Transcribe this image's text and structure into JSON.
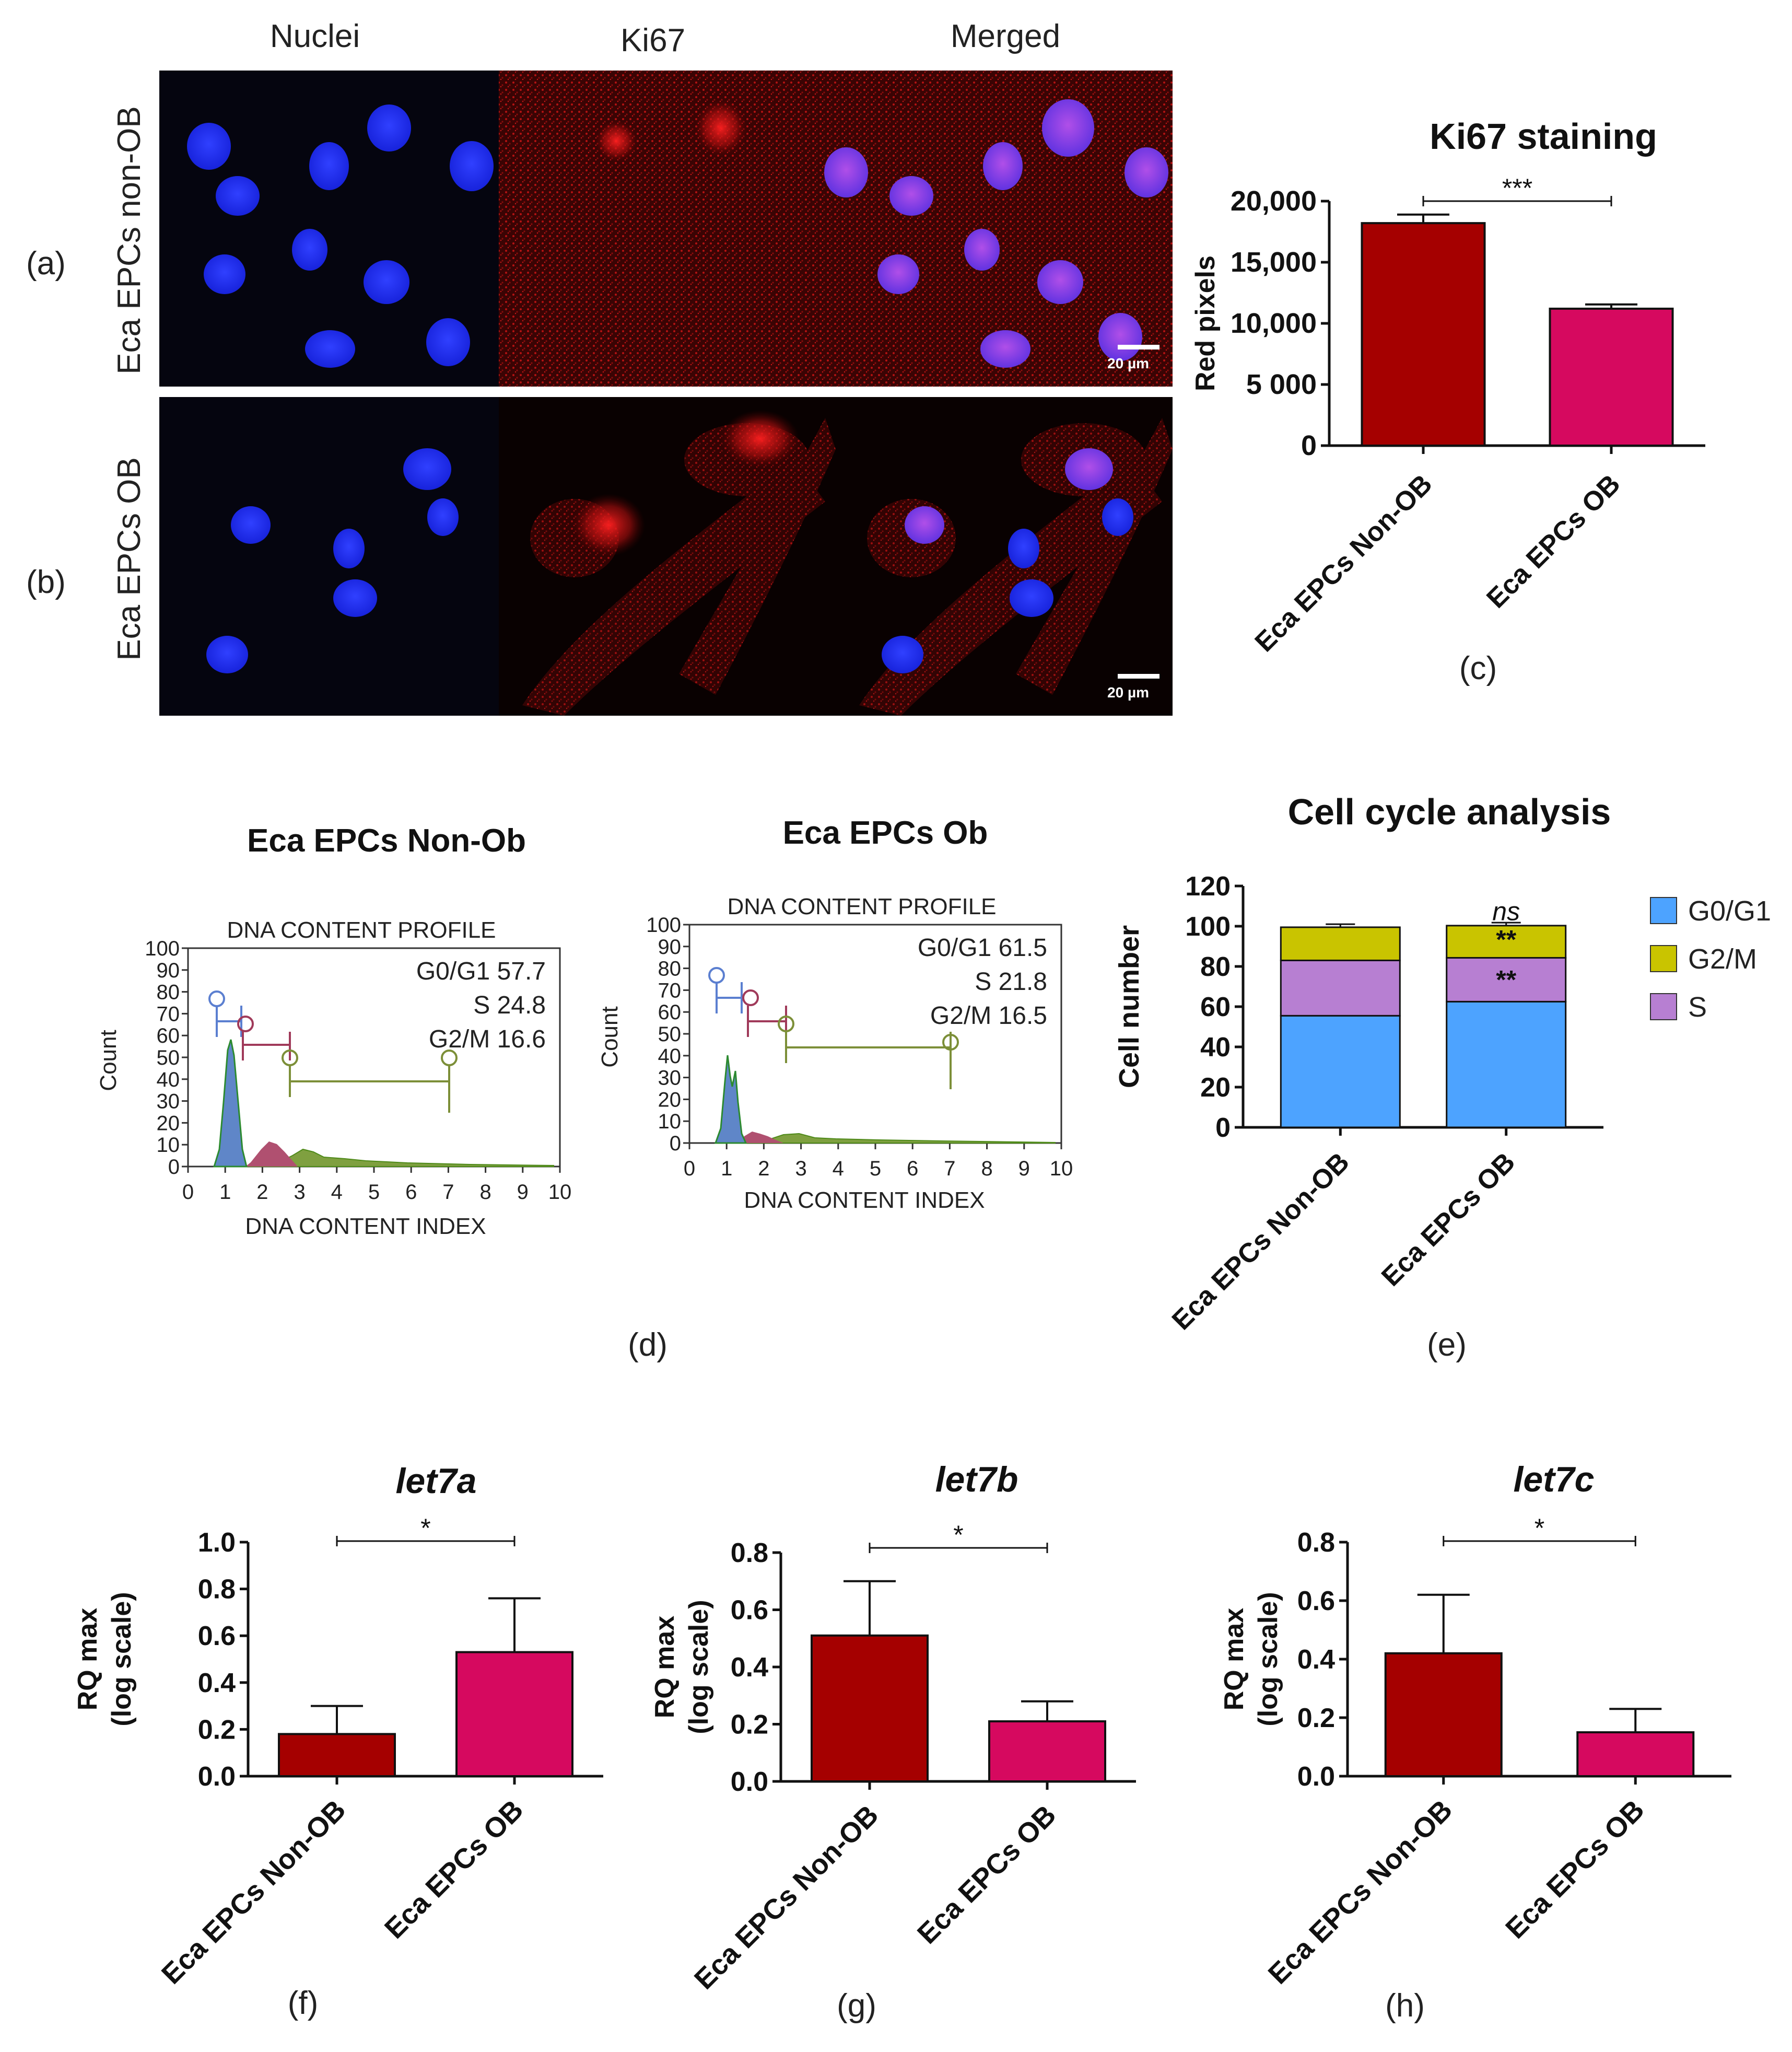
{
  "micrograph": {
    "columns": [
      "Nuclei",
      "Ki67",
      "Merged"
    ],
    "rows": [
      {
        "panel": "(a)",
        "label": "Eca EPCs non-OB"
      },
      {
        "panel": "(b)",
        "label": "Eca EPCs OB"
      }
    ],
    "scalebar": "20 µm",
    "colors": {
      "nuclei": "#1a2cff",
      "ki67": "#d01010",
      "merged_nucleus": "#8a3fe0"
    }
  },
  "panel_labels": {
    "c": "(c)",
    "d": "(d)",
    "e": "(e)",
    "f": "(f)",
    "g": "(g)",
    "h": "(h)"
  },
  "histograms": [
    {
      "title": "Eca EPCs Non-Ob",
      "subtitle": "DNA CONTENT PROFILE",
      "ylabel": "Count",
      "xlabel": "DNA CONTENT INDEX",
      "stats": [
        "G0/G1 57.7",
        "S 24.8",
        "G2/M 16.6"
      ],
      "xticks": [
        "0",
        "1",
        "2",
        "3",
        "4",
        "5",
        "6",
        "7",
        "8",
        "9",
        "10"
      ],
      "yticks": [
        "0",
        "10",
        "20",
        "30",
        "40",
        "50",
        "60",
        "70",
        "80",
        "90",
        "100"
      ]
    },
    {
      "title": "Eca EPCs Ob",
      "subtitle": "DNA CONTENT PROFILE",
      "ylabel": "Count",
      "xlabel": "DNA CONTENT INDEX",
      "stats": [
        "G0/G1 61.5",
        "S 21.8",
        "G2/M 16.5"
      ],
      "xticks": [
        "0",
        "1",
        "2",
        "3",
        "4",
        "5",
        "6",
        "7",
        "8",
        "9",
        "10"
      ],
      "yticks": [
        "0",
        "10",
        "20",
        "30",
        "40",
        "50",
        "60",
        "70",
        "80",
        "90",
        "100"
      ]
    }
  ],
  "chart_data": [
    {
      "id": "c",
      "type": "bar",
      "title": "Ki67 staining",
      "ylabel": "Red pixels",
      "xlabel": "",
      "categories": [
        "Eca EPCs Non-OB",
        "Eca EPCs OB"
      ],
      "values": [
        18200,
        11200
      ],
      "errors": [
        700,
        350
      ],
      "colors": [
        "#a50000",
        "#d6095f"
      ],
      "ylim": [
        0,
        20000
      ],
      "yticks": [
        0,
        5000,
        10000,
        15000,
        20000
      ],
      "ytick_labels": [
        "0",
        "5 000",
        "10,000",
        "15,000",
        "20,000"
      ],
      "significance": "***"
    },
    {
      "id": "e",
      "type": "bar",
      "stacked": true,
      "title": "Cell cycle analysis",
      "ylabel": "Cell number",
      "xlabel": "",
      "categories": [
        "Eca EPCs Non-OB",
        "Eca EPCs OB"
      ],
      "series": [
        {
          "name": "G0/G1",
          "values": [
            55.5,
            62.5
          ],
          "errors": [
            2.5,
            1.0
          ],
          "color": "#4da3ff"
        },
        {
          "name": "S",
          "values": [
            27.5,
            21.8
          ],
          "errors": [
            2.5,
            1.0
          ],
          "color": "#b77fd2"
        },
        {
          "name": "G2/M",
          "values": [
            16.5,
            16
          ],
          "errors": [
            1.5,
            1.5
          ],
          "color": "#c9c400"
        }
      ],
      "ylim": [
        0,
        120
      ],
      "yticks": [
        0,
        20,
        40,
        60,
        80,
        100,
        120
      ],
      "annotations": [
        "ns",
        "**",
        "**"
      ],
      "legend": "right"
    },
    {
      "id": "f",
      "type": "bar",
      "title": "let7a",
      "ylabel": "RQ max (log scale)",
      "xlabel": "",
      "categories": [
        "Eca EPCs Non-OB",
        "Eca EPCs OB"
      ],
      "values": [
        0.18,
        0.53
      ],
      "errors": [
        0.12,
        0.23
      ],
      "colors": [
        "#a50000",
        "#d6095f"
      ],
      "ylim": [
        0,
        1.0
      ],
      "yticks": [
        0,
        0.2,
        0.4,
        0.6,
        0.8,
        1.0
      ],
      "ytick_labels": [
        "0.0",
        "0.2",
        "0.4",
        "0.6",
        "0.8",
        "1.0"
      ],
      "significance": "*"
    },
    {
      "id": "g",
      "type": "bar",
      "title": "let7b",
      "ylabel": "RQ max (log scale)",
      "xlabel": "",
      "categories": [
        "Eca EPCs Non-OB",
        "Eca EPCs OB"
      ],
      "values": [
        0.51,
        0.21
      ],
      "errors": [
        0.19,
        0.07
      ],
      "colors": [
        "#a50000",
        "#d6095f"
      ],
      "ylim": [
        0,
        0.8
      ],
      "yticks": [
        0,
        0.2,
        0.4,
        0.6,
        0.8
      ],
      "ytick_labels": [
        "0.0",
        "0.2",
        "0.4",
        "0.6",
        "0.8"
      ],
      "significance": "*"
    },
    {
      "id": "h",
      "type": "bar",
      "title": "let7c",
      "ylabel": "RQ max (log scale)",
      "xlabel": "",
      "categories": [
        "Eca EPCs Non-OB",
        "Eca EPCs OB"
      ],
      "values": [
        0.42,
        0.15
      ],
      "errors": [
        0.2,
        0.08
      ],
      "colors": [
        "#a50000",
        "#d6095f"
      ],
      "ylim": [
        0,
        0.8
      ],
      "yticks": [
        0,
        0.2,
        0.4,
        0.6,
        0.8
      ],
      "ytick_labels": [
        "0.0",
        "0.2",
        "0.4",
        "0.6",
        "0.8"
      ],
      "significance": "*"
    }
  ]
}
